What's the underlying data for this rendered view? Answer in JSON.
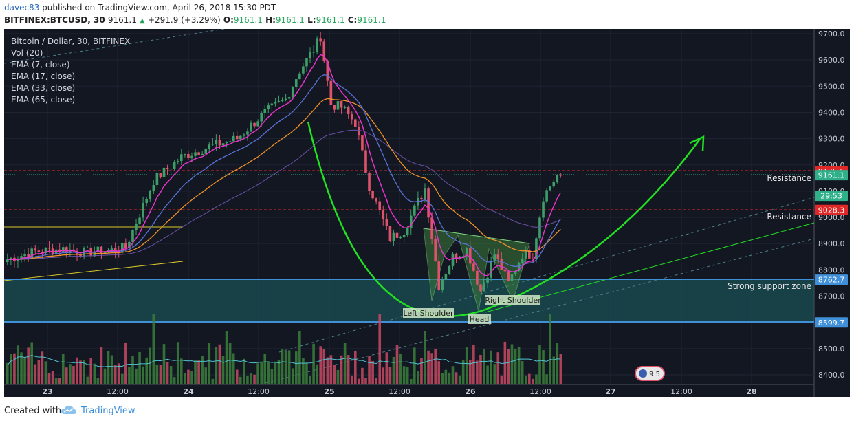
{
  "header": {
    "user": "davec83",
    "published": " published on TradingView.com, April 26, 2018 15:30 PDT",
    "symbol": "BITFINEX:BTCUSD, 30",
    "last": "9161.1",
    "change": "+291.9 (+3.29%)",
    "o_label": "O:",
    "o_value": "9161.1",
    "h_label": "H:",
    "h_value": "9161.1",
    "l_label": "L:",
    "l_value": "9161.1",
    "c_label": "C:",
    "c_value": "9161.1"
  },
  "legend": [
    "Bitcoin / Dollar, 30, BITFINEX",
    "Vol (20)",
    "EMA (7, close)",
    "EMA (17, close)",
    "EMA (33, close)",
    "EMA (65, close)"
  ],
  "footer": {
    "created": "Created with",
    "brand": "TradingView"
  },
  "colors": {
    "bg": "#131722",
    "up": "#3e9e6a",
    "down": "#e0526b",
    "ema7": "#e535c8",
    "ema17": "#5b73d8",
    "ema33": "#f09228",
    "ema65": "#6b52a8",
    "annotation": "#22e022",
    "support": "#3f8fd9",
    "resistance": "#e02828"
  },
  "chart_data": {
    "type": "candlestick",
    "title": "Bitcoin / Dollar, 30, BITFINEX",
    "x_tick_labels": [
      "23",
      "12:00",
      "24",
      "12:00",
      "25",
      "12:00",
      "26",
      "12:00",
      "27",
      "12:00",
      "28"
    ],
    "y_tick_labels": [
      "9700.0",
      "9600.0",
      "9500.0",
      "9400.0",
      "9300.0",
      "9200.0",
      "9100.0",
      "9000.0",
      "8900.0",
      "8800.0",
      "8700.0",
      "8600.0",
      "8500.0",
      "8400.0"
    ],
    "ylim": [
      8360,
      9735
    ],
    "candle_bars": 160,
    "close_path": [
      [
        0,
        8840
      ],
      [
        8,
        8870
      ],
      [
        16,
        8880
      ],
      [
        22,
        8865
      ],
      [
        30,
        8875
      ],
      [
        34,
        8885
      ],
      [
        42,
        9140
      ],
      [
        50,
        9230
      ],
      [
        58,
        9270
      ],
      [
        66,
        9300
      ],
      [
        74,
        9400
      ],
      [
        80,
        9450
      ],
      [
        84,
        9560
      ],
      [
        88,
        9640
      ],
      [
        90,
        9690
      ],
      [
        93,
        9430
      ],
      [
        96,
        9420
      ],
      [
        100,
        9360
      ],
      [
        104,
        9120
      ],
      [
        110,
        8920
      ],
      [
        114,
        8950
      ],
      [
        118,
        9060
      ],
      [
        120,
        9110
      ],
      [
        124,
        8740
      ],
      [
        128,
        8850
      ],
      [
        132,
        8880
      ],
      [
        136,
        8720
      ],
      [
        140,
        8860
      ],
      [
        144,
        8750
      ],
      [
        148,
        8860
      ],
      [
        151,
        8860
      ],
      [
        154,
        9080
      ],
      [
        158,
        9160
      ],
      [
        160,
        9161.1
      ]
    ],
    "price_levels": [
      {
        "label": "9175.5",
        "value": 9175.5,
        "kind": "resistance"
      },
      {
        "label": "9161.1",
        "value": 9161.1,
        "kind": "last"
      },
      {
        "label": "29:53",
        "value": 9128,
        "kind": "countdown"
      },
      {
        "label": "9028.3",
        "value": 9028.3,
        "kind": "resistance"
      },
      {
        "label": "8762.7",
        "value": 8762.7,
        "kind": "support"
      },
      {
        "label": "8599.7",
        "value": 8599.7,
        "kind": "support"
      }
    ],
    "annotations": {
      "resistance_label": "Resistance",
      "support_zone_label": "Strong support zone",
      "left_shoulder": "Left Shoulder",
      "head": "Head",
      "right_shoulder": "Right Shoulder",
      "event_badge": "9 5"
    }
  }
}
